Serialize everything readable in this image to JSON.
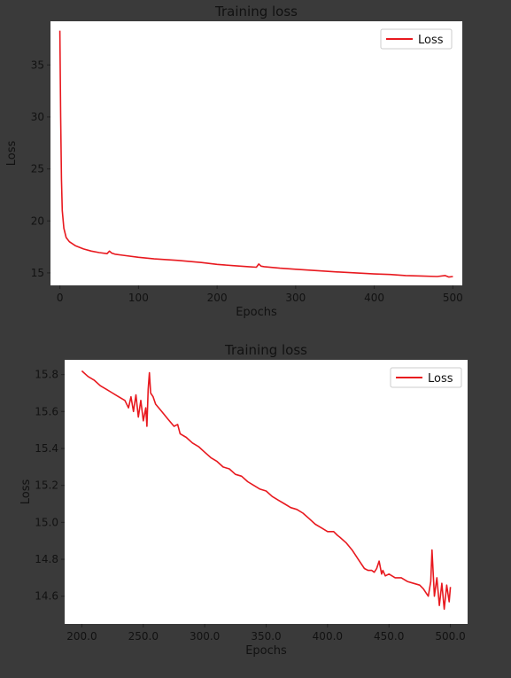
{
  "chart_data": [
    {
      "type": "line",
      "title": "Training loss",
      "xlabel": "Epochs",
      "ylabel": "Loss",
      "xlim": [
        -12,
        512
      ],
      "ylim": [
        13.8,
        39.2
      ],
      "xticks": [
        0,
        100,
        200,
        300,
        400,
        500
      ],
      "yticks": [
        15,
        20,
        25,
        30,
        35
      ],
      "grid": false,
      "legend": "top-right",
      "series": [
        {
          "name": "Loss",
          "color": "#e8191f",
          "x": [
            0,
            1,
            2,
            3,
            5,
            8,
            12,
            20,
            30,
            40,
            50,
            60,
            63,
            66,
            70,
            80,
            100,
            120,
            150,
            180,
            200,
            220,
            240,
            250,
            253,
            256,
            260,
            280,
            300,
            350,
            400,
            420,
            440,
            460,
            480,
            490,
            495,
            500
          ],
          "y": [
            38.3,
            30.0,
            24.0,
            21.0,
            19.3,
            18.4,
            18.0,
            17.6,
            17.3,
            17.1,
            16.95,
            16.85,
            17.1,
            16.9,
            16.8,
            16.7,
            16.5,
            16.35,
            16.2,
            16.0,
            15.82,
            15.7,
            15.6,
            15.55,
            15.85,
            15.65,
            15.6,
            15.45,
            15.35,
            15.1,
            14.9,
            14.85,
            14.75,
            14.7,
            14.65,
            14.75,
            14.6,
            14.65
          ]
        }
      ]
    },
    {
      "type": "line",
      "title": "Training loss",
      "xlabel": "Epochs",
      "ylabel": "Loss",
      "xlim": [
        186,
        514
      ],
      "ylim": [
        14.45,
        15.88
      ],
      "xticks": [
        200,
        250,
        300,
        350,
        400,
        450,
        500
      ],
      "yticks": [
        14.6,
        14.8,
        15.0,
        15.2,
        15.4,
        15.6,
        15.8
      ],
      "grid": false,
      "legend": "top-right",
      "series": [
        {
          "name": "Loss",
          "color": "#e8191f",
          "x": [
            200,
            205,
            210,
            215,
            220,
            225,
            230,
            235,
            238,
            240,
            242,
            244,
            246,
            248,
            250,
            252,
            253,
            254,
            255,
            256,
            258,
            260,
            265,
            270,
            275,
            278,
            280,
            285,
            290,
            295,
            300,
            305,
            310,
            315,
            320,
            325,
            330,
            335,
            340,
            345,
            350,
            355,
            360,
            365,
            370,
            375,
            380,
            385,
            390,
            395,
            400,
            405,
            408,
            410,
            415,
            420,
            425,
            430,
            433,
            436,
            438,
            440,
            442,
            444,
            445,
            447,
            450,
            455,
            460,
            465,
            470,
            475,
            478,
            480,
            482,
            484,
            485,
            487,
            489,
            491,
            493,
            495,
            497,
            499,
            500
          ],
          "y": [
            15.82,
            15.79,
            15.77,
            15.74,
            15.72,
            15.7,
            15.68,
            15.66,
            15.62,
            15.68,
            15.6,
            15.69,
            15.57,
            15.66,
            15.55,
            15.62,
            15.52,
            15.72,
            15.81,
            15.7,
            15.68,
            15.64,
            15.6,
            15.56,
            15.52,
            15.53,
            15.48,
            15.46,
            15.43,
            15.41,
            15.38,
            15.35,
            15.33,
            15.3,
            15.29,
            15.26,
            15.25,
            15.22,
            15.2,
            15.18,
            15.17,
            15.14,
            15.12,
            15.1,
            15.08,
            15.07,
            15.05,
            15.02,
            14.99,
            14.97,
            14.95,
            14.95,
            14.93,
            14.92,
            14.89,
            14.85,
            14.8,
            14.75,
            14.74,
            14.74,
            14.73,
            14.75,
            14.79,
            14.72,
            14.74,
            14.71,
            14.72,
            14.7,
            14.7,
            14.68,
            14.67,
            14.66,
            14.64,
            14.62,
            14.6,
            14.68,
            14.85,
            14.6,
            14.7,
            14.55,
            14.67,
            14.53,
            14.66,
            14.57,
            14.65
          ]
        }
      ]
    }
  ]
}
